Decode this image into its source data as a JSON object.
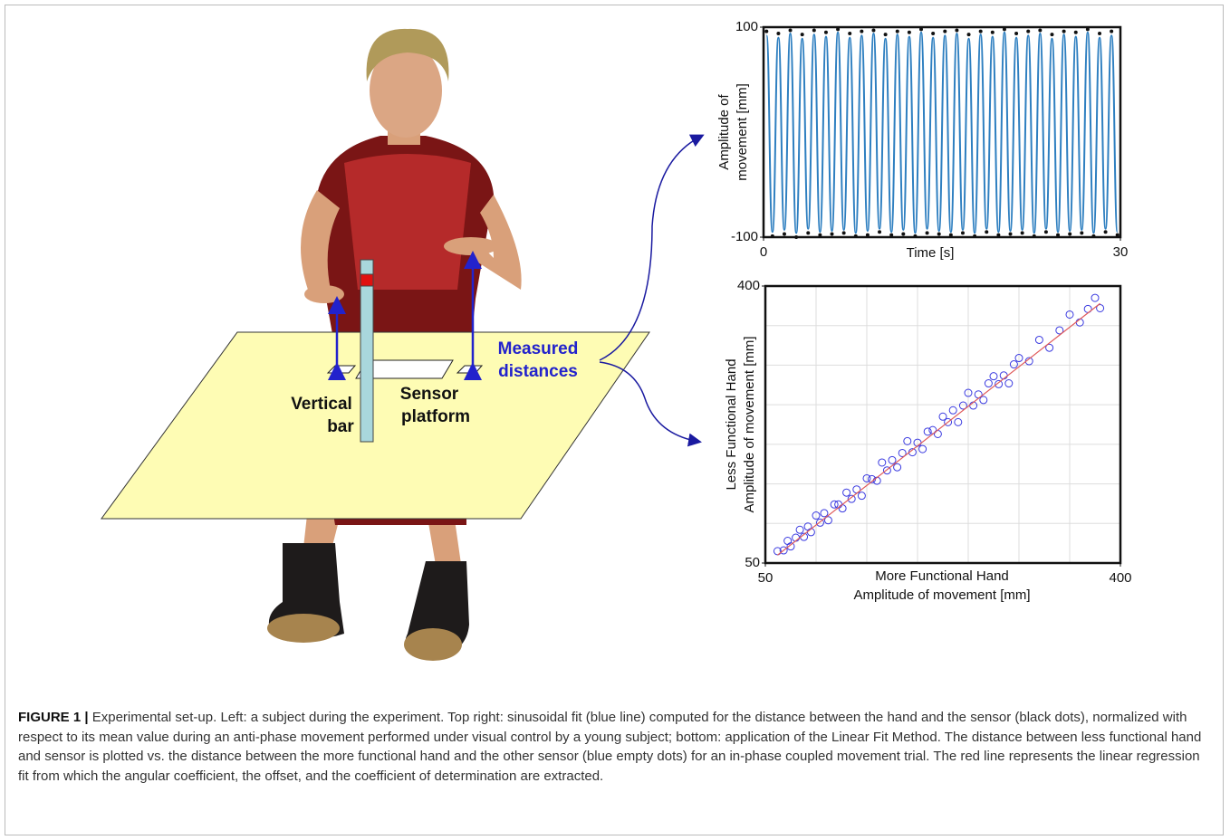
{
  "figure": {
    "labels": {
      "measured": [
        "Measured",
        "distances"
      ],
      "vertical_bar": [
        "Vertical",
        "bar"
      ],
      "sensor_platform": [
        "Sensor",
        "platform"
      ]
    },
    "caption": {
      "label": "FIGURE 1 |",
      "text": "Experimental set-up. Left: a subject during the experiment. Top right: sinusoidal fit (blue line) computed for the distance between the hand and the sensor (black dots), normalized with respect to its mean value during an anti-phase movement performed under visual control by a young subject; bottom: application of the Linear Fit Method. The distance between less functional hand and sensor is plotted vs. the distance between the more functional hand and the other sensor (blue empty dots) for an in-phase coupled movement trial. The red line represents the linear regression fit from which the angular coefficient, the offset, and the coefficient of determination are extracted."
    }
  },
  "chart_data": [
    {
      "type": "line",
      "xlabel": [
        "Time [s]"
      ],
      "ylabel": [
        "Amplitude of",
        "movement [mm]"
      ],
      "xlim": [
        0,
        30
      ],
      "ylim": [
        -100,
        100
      ],
      "xticks": [
        0,
        30
      ],
      "yticks": [
        -100,
        100
      ],
      "series": [
        {
          "kind": "line",
          "color": "#2e7fc0",
          "x": [
            0.25,
            0.75,
            1.25,
            1.75,
            2.25,
            2.75,
            3.25,
            3.75,
            4.25,
            4.75,
            5.25,
            5.75,
            6.25,
            6.75,
            7.25,
            7.75,
            8.25,
            8.75,
            9.25,
            9.75,
            10.25,
            10.75,
            11.25,
            11.75,
            12.25,
            12.75,
            13.25,
            13.75,
            14.25,
            14.75,
            15.25,
            15.75,
            16.25,
            16.75,
            17.25,
            17.75,
            18.25,
            18.75,
            19.25,
            19.75,
            20.25,
            20.75,
            21.25,
            21.75,
            22.25,
            22.75,
            23.25,
            23.75,
            24.25,
            24.75,
            25.25,
            25.75,
            26.25,
            26.75,
            27.25,
            27.75,
            28.25,
            28.75,
            29.25,
            29.75
          ],
          "values": [
            92,
            -95,
            90,
            -93,
            94,
            -96,
            89,
            -92,
            93,
            -95,
            91,
            -94,
            95,
            -93,
            90,
            -96,
            92,
            -94,
            94,
            -92,
            89,
            -95,
            93,
            -93,
            91,
            -96,
            95,
            -92,
            90,
            -94,
            92,
            -95,
            94,
            -93,
            89,
            -96,
            93,
            -92,
            91,
            -95,
            95,
            -94,
            90,
            -93,
            92,
            -96,
            94,
            -92,
            89,
            -95,
            93,
            -94,
            91,
            -93,
            95,
            -96,
            90,
            -92,
            92,
            -95
          ]
        },
        {
          "kind": "dots",
          "color": "#111111",
          "x": [
            0.25,
            0.75,
            1.25,
            1.75,
            2.25,
            2.75,
            3.25,
            3.75,
            4.25,
            4.75,
            5.25,
            5.75,
            6.25,
            6.75,
            7.25,
            7.75,
            8.25,
            8.75,
            9.25,
            9.75,
            10.25,
            10.75,
            11.25,
            11.75,
            12.25,
            12.75,
            13.25,
            13.75,
            14.25,
            14.75,
            15.25,
            15.75,
            16.25,
            16.75,
            17.25,
            17.75,
            18.25,
            18.75,
            19.25,
            19.75,
            20.25,
            20.75,
            21.25,
            21.75,
            22.25,
            22.75,
            23.25,
            23.75,
            24.25,
            24.75,
            25.25,
            25.75,
            26.25,
            26.75,
            27.25,
            27.75,
            28.25,
            28.75,
            29.25,
            29.75
          ],
          "values": [
            96,
            -99,
            94,
            -97,
            97,
            -100,
            93,
            -96,
            97,
            -98,
            95,
            -97,
            98,
            -96,
            94,
            -99,
            96,
            -98,
            97,
            -95,
            93,
            -98,
            96,
            -97,
            95,
            -99,
            98,
            -96,
            94,
            -97,
            96,
            -98,
            97,
            -96,
            93,
            -99,
            96,
            -95,
            95,
            -98,
            98,
            -97,
            94,
            -96,
            96,
            -99,
            97,
            -95,
            93,
            -98,
            96,
            -97,
            95,
            -96,
            98,
            -99,
            94,
            -95,
            96,
            -98
          ]
        }
      ]
    },
    {
      "type": "scatter",
      "xlabel": [
        "More Functional Hand",
        "Amplitude of movement [mm]"
      ],
      "ylabel": [
        "Less Functional Hand",
        "Amplitude of movement [mm]"
      ],
      "xlim": [
        50,
        400
      ],
      "ylim": [
        50,
        400
      ],
      "xticks": [
        50,
        400
      ],
      "yticks": [
        50,
        400
      ],
      "xgrid": [
        100,
        150,
        200,
        250,
        300,
        350
      ],
      "ygrid": [
        100,
        150,
        200,
        250,
        300,
        350
      ],
      "series": [
        {
          "kind": "circles",
          "color": "#3a3ae0",
          "x": [
            62,
            68,
            72,
            75,
            80,
            84,
            88,
            92,
            95,
            100,
            104,
            108,
            112,
            118,
            122,
            126,
            130,
            135,
            140,
            145,
            150,
            155,
            160,
            165,
            170,
            175,
            180,
            185,
            190,
            195,
            200,
            205,
            210,
            215,
            220,
            225,
            230,
            235,
            240,
            245,
            250,
            255,
            260,
            265,
            270,
            275,
            280,
            285,
            290,
            295,
            300,
            310,
            320,
            330,
            340,
            350,
            360,
            368,
            375,
            380
          ],
          "values": [
            65,
            66,
            78,
            71,
            82,
            92,
            83,
            96,
            89,
            110,
            101,
            113,
            104,
            124,
            124,
            119,
            139,
            131,
            143,
            135,
            157,
            156,
            154,
            177,
            167,
            180,
            171,
            189,
            204,
            190,
            202,
            194,
            216,
            218,
            213,
            235,
            228,
            243,
            228,
            249,
            265,
            249,
            263,
            256,
            277,
            286,
            276,
            287,
            277,
            301,
            309,
            305,
            332,
            322,
            344,
            364,
            354,
            371,
            385,
            372
          ]
        },
        {
          "kind": "line",
          "color": "#e05a5a",
          "x": [
            62,
            380
          ],
          "values": [
            60,
            378
          ]
        }
      ]
    }
  ]
}
